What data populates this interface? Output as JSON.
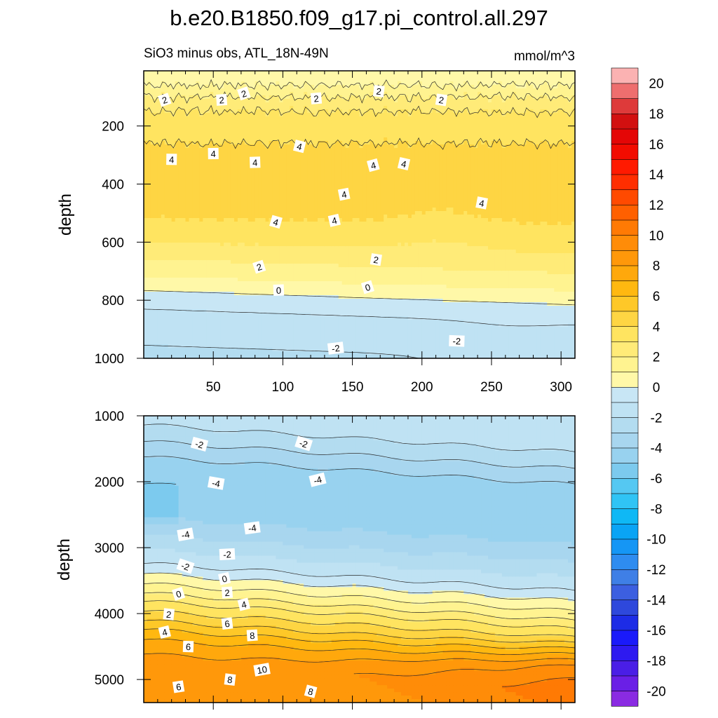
{
  "title": "b.e20.B1850.f09_g17.pi_control.all.297",
  "subtitle_left": "SiO3 minus obs, ATL_18N-49N",
  "units": "mmol/m^3",
  "chart_data": [
    {
      "type": "heatmap",
      "panel": "upper",
      "title": "SiO3 minus obs, ATL_18N-49N",
      "xlabel": "",
      "ylabel": "depth",
      "xlim": [
        0,
        310
      ],
      "ylim": [
        1000,
        10
      ],
      "xticks": [
        "50",
        "100",
        "150",
        "200",
        "250",
        "300"
      ],
      "yticks": [
        "200",
        "400",
        "600",
        "800",
        "1000"
      ],
      "contour_levels": [
        -2,
        0,
        2,
        4
      ],
      "profile": {
        "depth": [
          0,
          60,
          100,
          150,
          200,
          300,
          400,
          500,
          550,
          600,
          650,
          700,
          750,
          800,
          850,
          900,
          1000
        ],
        "value": [
          0.3,
          1.0,
          2.0,
          3.0,
          3.7,
          4.2,
          4.3,
          4.1,
          3.9,
          3.2,
          2.5,
          1.6,
          0.8,
          -0.3,
          -1.0,
          -1.4,
          -2.2
        ]
      },
      "contour_labels": [
        {
          "x": 15,
          "depth": 110,
          "text": "2"
        },
        {
          "x": 56,
          "depth": 110,
          "text": "2"
        },
        {
          "x": 72,
          "depth": 88,
          "text": "2"
        },
        {
          "x": 124,
          "depth": 105,
          "text": "2"
        },
        {
          "x": 169,
          "depth": 80,
          "text": "2"
        },
        {
          "x": 214,
          "depth": 110,
          "text": "2"
        },
        {
          "x": 20,
          "depth": 315,
          "text": "4"
        },
        {
          "x": 50,
          "depth": 295,
          "text": "4"
        },
        {
          "x": 80,
          "depth": 325,
          "text": "4"
        },
        {
          "x": 112,
          "depth": 270,
          "text": "4"
        },
        {
          "x": 144,
          "depth": 435,
          "text": "4"
        },
        {
          "x": 165,
          "depth": 335,
          "text": "4"
        },
        {
          "x": 187,
          "depth": 330,
          "text": "4"
        },
        {
          "x": 243,
          "depth": 465,
          "text": "4"
        },
        {
          "x": 95,
          "depth": 530,
          "text": "4"
        },
        {
          "x": 137,
          "depth": 525,
          "text": "4"
        },
        {
          "x": 83,
          "depth": 685,
          "text": "2"
        },
        {
          "x": 167,
          "depth": 660,
          "text": "2"
        },
        {
          "x": 97,
          "depth": 765,
          "text": "0"
        },
        {
          "x": 161,
          "depth": 755,
          "text": "0"
        },
        {
          "x": 138,
          "depth": 965,
          "text": "-2"
        },
        {
          "x": 225,
          "depth": 940,
          "text": "-2"
        }
      ]
    },
    {
      "type": "heatmap",
      "panel": "lower",
      "xlabel": "",
      "ylabel": "depth",
      "xlim": [
        0,
        310
      ],
      "ylim": [
        5350,
        1000
      ],
      "yticks": [
        "1000",
        "2000",
        "3000",
        "4000",
        "5000"
      ],
      "contour_levels": [
        -4,
        -2,
        0,
        2,
        4,
        6,
        8,
        10
      ],
      "profile": {
        "depth": [
          1000,
          1400,
          1700,
          2000,
          2300,
          2500,
          2800,
          3000,
          3300,
          3500,
          3700,
          3900,
          4100,
          4300,
          4500,
          4700,
          5000,
          5350
        ],
        "value": [
          -1.2,
          -2.0,
          -3.2,
          -4.5,
          -5.0,
          -4.9,
          -4.0,
          -3.3,
          -2.0,
          -1.0,
          0.3,
          1.6,
          3.2,
          4.5,
          6.0,
          7.3,
          8.5,
          8.0
        ]
      },
      "contour_labels": [
        {
          "x": 40,
          "depth": 1430,
          "text": "-2"
        },
        {
          "x": 115,
          "depth": 1420,
          "text": "-2"
        },
        {
          "x": 52,
          "depth": 2020,
          "text": "-4"
        },
        {
          "x": 125,
          "depth": 1970,
          "text": "-4"
        },
        {
          "x": 30,
          "depth": 2800,
          "text": "-4"
        },
        {
          "x": 78,
          "depth": 2700,
          "text": "-4"
        },
        {
          "x": 30,
          "depth": 3280,
          "text": "-2"
        },
        {
          "x": 60,
          "depth": 3100,
          "text": "-2"
        },
        {
          "x": 25,
          "depth": 3700,
          "text": "0"
        },
        {
          "x": 58,
          "depth": 3470,
          "text": "0"
        },
        {
          "x": 18,
          "depth": 4010,
          "text": "2"
        },
        {
          "x": 60,
          "depth": 3680,
          "text": "2"
        },
        {
          "x": 15,
          "depth": 4280,
          "text": "4"
        },
        {
          "x": 72,
          "depth": 3860,
          "text": "4"
        },
        {
          "x": 32,
          "depth": 4500,
          "text": "6"
        },
        {
          "x": 60,
          "depth": 4150,
          "text": "6"
        },
        {
          "x": 78,
          "depth": 4330,
          "text": "8"
        },
        {
          "x": 85,
          "depth": 4850,
          "text": "10"
        },
        {
          "x": 62,
          "depth": 5000,
          "text": "8"
        },
        {
          "x": 25,
          "depth": 5110,
          "text": "6"
        },
        {
          "x": 120,
          "depth": 5180,
          "text": "8"
        }
      ]
    }
  ],
  "colorbar": {
    "levels": [
      -21,
      -20,
      -19,
      -18,
      -17,
      -16,
      -15,
      -14,
      -13,
      -12,
      -11,
      -10,
      -9,
      -8,
      -7,
      -6,
      -5,
      -4,
      -3,
      -2,
      -1,
      0,
      1,
      2,
      3,
      4,
      5,
      6,
      7,
      8,
      9,
      10,
      11,
      12,
      13,
      14,
      15,
      16,
      17,
      18,
      19,
      20,
      21
    ],
    "tick_labels": [
      "-20",
      "-18",
      "-16",
      "-14",
      "-12",
      "-10",
      "-8",
      "-6",
      "-4",
      "-2",
      "0",
      "2",
      "4",
      "6",
      "8",
      "10",
      "12",
      "14",
      "16",
      "18",
      "20"
    ],
    "colors": [
      "#8a2be2",
      "#6a1fe6",
      "#4a1ee6",
      "#2e1af0",
      "#1a1afa",
      "#1d2ce6",
      "#2e48dc",
      "#3c5fe0",
      "#3f7fe6",
      "#2e8cf0",
      "#1596f5",
      "#0aa4f5",
      "#0fb8f5",
      "#30c4f5",
      "#55c8f2",
      "#7ccaee",
      "#98d2ef",
      "#a8d6ef",
      "#b3dcf0",
      "#bfe2f3",
      "#c8e6f5",
      "#fff8a8",
      "#fff390",
      "#ffeb78",
      "#ffe460",
      "#fed543",
      "#fec828",
      "#ffb810",
      "#ffa80c",
      "#ff980a",
      "#ff8c08",
      "#ff7a04",
      "#ff6000",
      "#ff4a00",
      "#ff2e00",
      "#ff1a00",
      "#f20c00",
      "#e40606",
      "#d21010",
      "#de3a3a",
      "#ee6e6e",
      "#fbb2b2"
    ]
  }
}
